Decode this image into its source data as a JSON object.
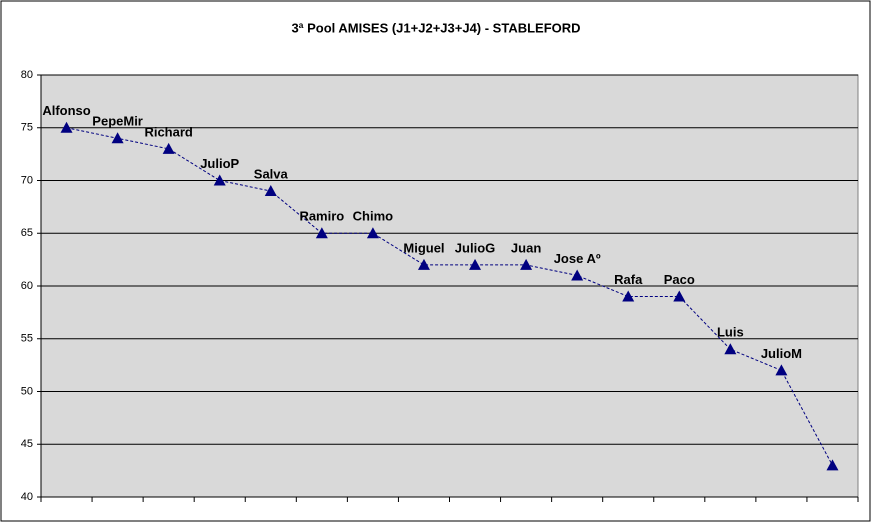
{
  "chart_data": {
    "type": "line",
    "title": "3ª Pool AMISES (J1+J2+J3+J4) - STABLEFORD",
    "categories": [
      "Alfonso",
      "PepeMir",
      "Richard",
      "JulioP",
      "Salva",
      "Ramiro",
      "Chimo",
      "Miguel",
      "JulioG",
      "Juan",
      "Jose Aº",
      "Rafa",
      "Paco",
      "Luis",
      "JulioM",
      null
    ],
    "values": [
      75,
      74,
      73,
      70,
      69,
      65,
      65,
      62,
      62,
      62,
      61,
      59,
      59,
      54,
      52,
      43
    ],
    "color": "#000080",
    "ylim": [
      40,
      80
    ],
    "yticks": [
      40,
      45,
      50,
      55,
      60,
      65,
      70,
      75,
      80
    ],
    "grid": true
  }
}
